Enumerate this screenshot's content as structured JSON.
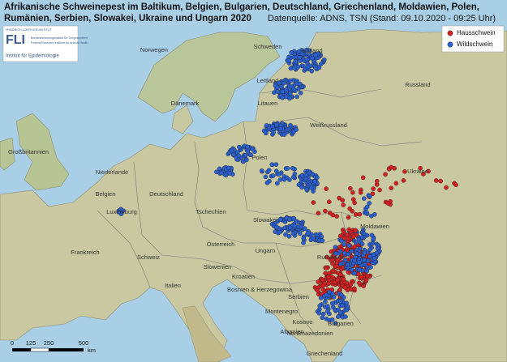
{
  "header": {
    "title_line1": "Afrikanische Schweinepest im Baltikum, Belgien, Bulgarien, Deutschland, Griechenland, Moldawien, Polen,",
    "title_line2": "Rumänien, Serbien, Slowakei, Ukraine und Ungarn 2020",
    "source": "Datenquelle: ADNS, TSN (Stand: 09.10.2020 - 09:25 Uhr)"
  },
  "logo": {
    "institute": "FRIEDRICH-LOEFFLER-INSTITUT",
    "abbr": "FLI",
    "line_de": "Bundesforschungsinstitut für Tiergesundheit",
    "line_en": "Federal Research Institute for Animal Health",
    "department": "Institut für Epidemiologie"
  },
  "legend": [
    {
      "label": "Hausschwein",
      "color": "#d42020"
    },
    {
      "label": "Wildschwein",
      "color": "#2a5fd0"
    }
  ],
  "countries": [
    "Schweden",
    "Norwegen",
    "Estland",
    "Lettland",
    "Dänemark",
    "Litauen",
    "Russland",
    "Weißrussland",
    "Großbritannien",
    "Polen",
    "Niederlande",
    "Ukraine",
    "Deutschland",
    "Belgien",
    "Luxemburg",
    "Tschechien",
    "Slowakei",
    "Moldawien",
    "Österreich",
    "Frankreich",
    "Schweiz",
    "Ungarn",
    "Rumänien",
    "Slowenien",
    "Kroatien",
    "Italien",
    "Serbien",
    "Bosnien & Herzegowina",
    "Bulgarien",
    "Montenegro",
    "Kosovo",
    "Albanien",
    "Nordmazedonien",
    "Griechenland"
  ],
  "scale": {
    "ticks": [
      0,
      125,
      250,
      500
    ],
    "unit": "km"
  }
}
